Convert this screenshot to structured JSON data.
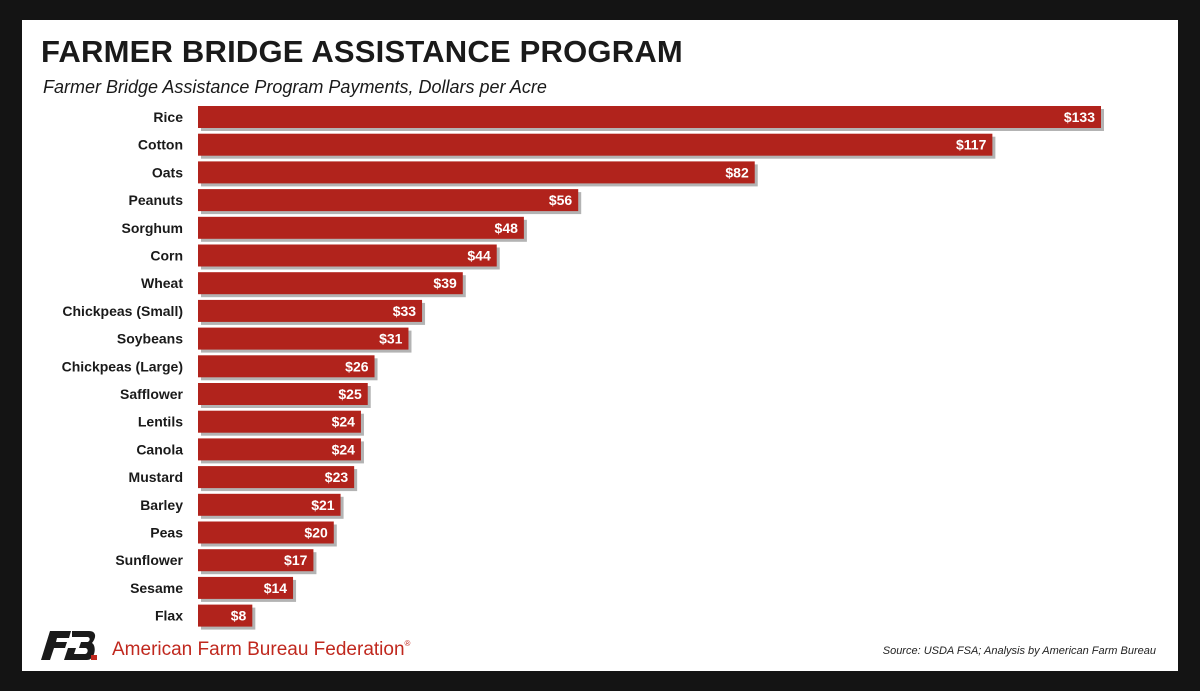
{
  "colors": {
    "bar": "#b1231c",
    "bar_shadow": "#b3b3b3",
    "brand": "#c0281e",
    "text": "#1a1a1a"
  },
  "logo": {
    "icon": "afbf-fb-logo-icon"
  },
  "footer": {
    "org_name": "American Farm Bureau Federation",
    "registered": "®",
    "source": "Source: USDA FSA; Analysis by American Farm Bureau"
  },
  "chart_data": {
    "type": "bar",
    "orientation": "horizontal",
    "title": "FARMER BRIDGE ASSISTANCE PROGRAM",
    "subtitle": "Farmer Bridge Assistance Program Payments, Dollars per Acre",
    "categories": [
      "Rice",
      "Cotton",
      "Oats",
      "Peanuts",
      "Sorghum",
      "Corn",
      "Wheat",
      "Chickpeas (Small)",
      "Soybeans",
      "Chickpeas (Large)",
      "Safflower",
      "Lentils",
      "Canola",
      "Mustard",
      "Barley",
      "Peas",
      "Sunflower",
      "Sesame",
      "Flax"
    ],
    "values": [
      133,
      117,
      82,
      56,
      48,
      44,
      39,
      33,
      31,
      26,
      25,
      24,
      24,
      23,
      21,
      20,
      17,
      14,
      8
    ],
    "labels": [
      "$133",
      "$117",
      "$82",
      "$56",
      "$48",
      "$44",
      "$39",
      "$33",
      "$31",
      "$26",
      "$25",
      "$24",
      "$24",
      "$23",
      "$21",
      "$20",
      "$17",
      "$14",
      "$8"
    ],
    "xlim": [
      0,
      133
    ],
    "grid": false,
    "legend": "none"
  }
}
